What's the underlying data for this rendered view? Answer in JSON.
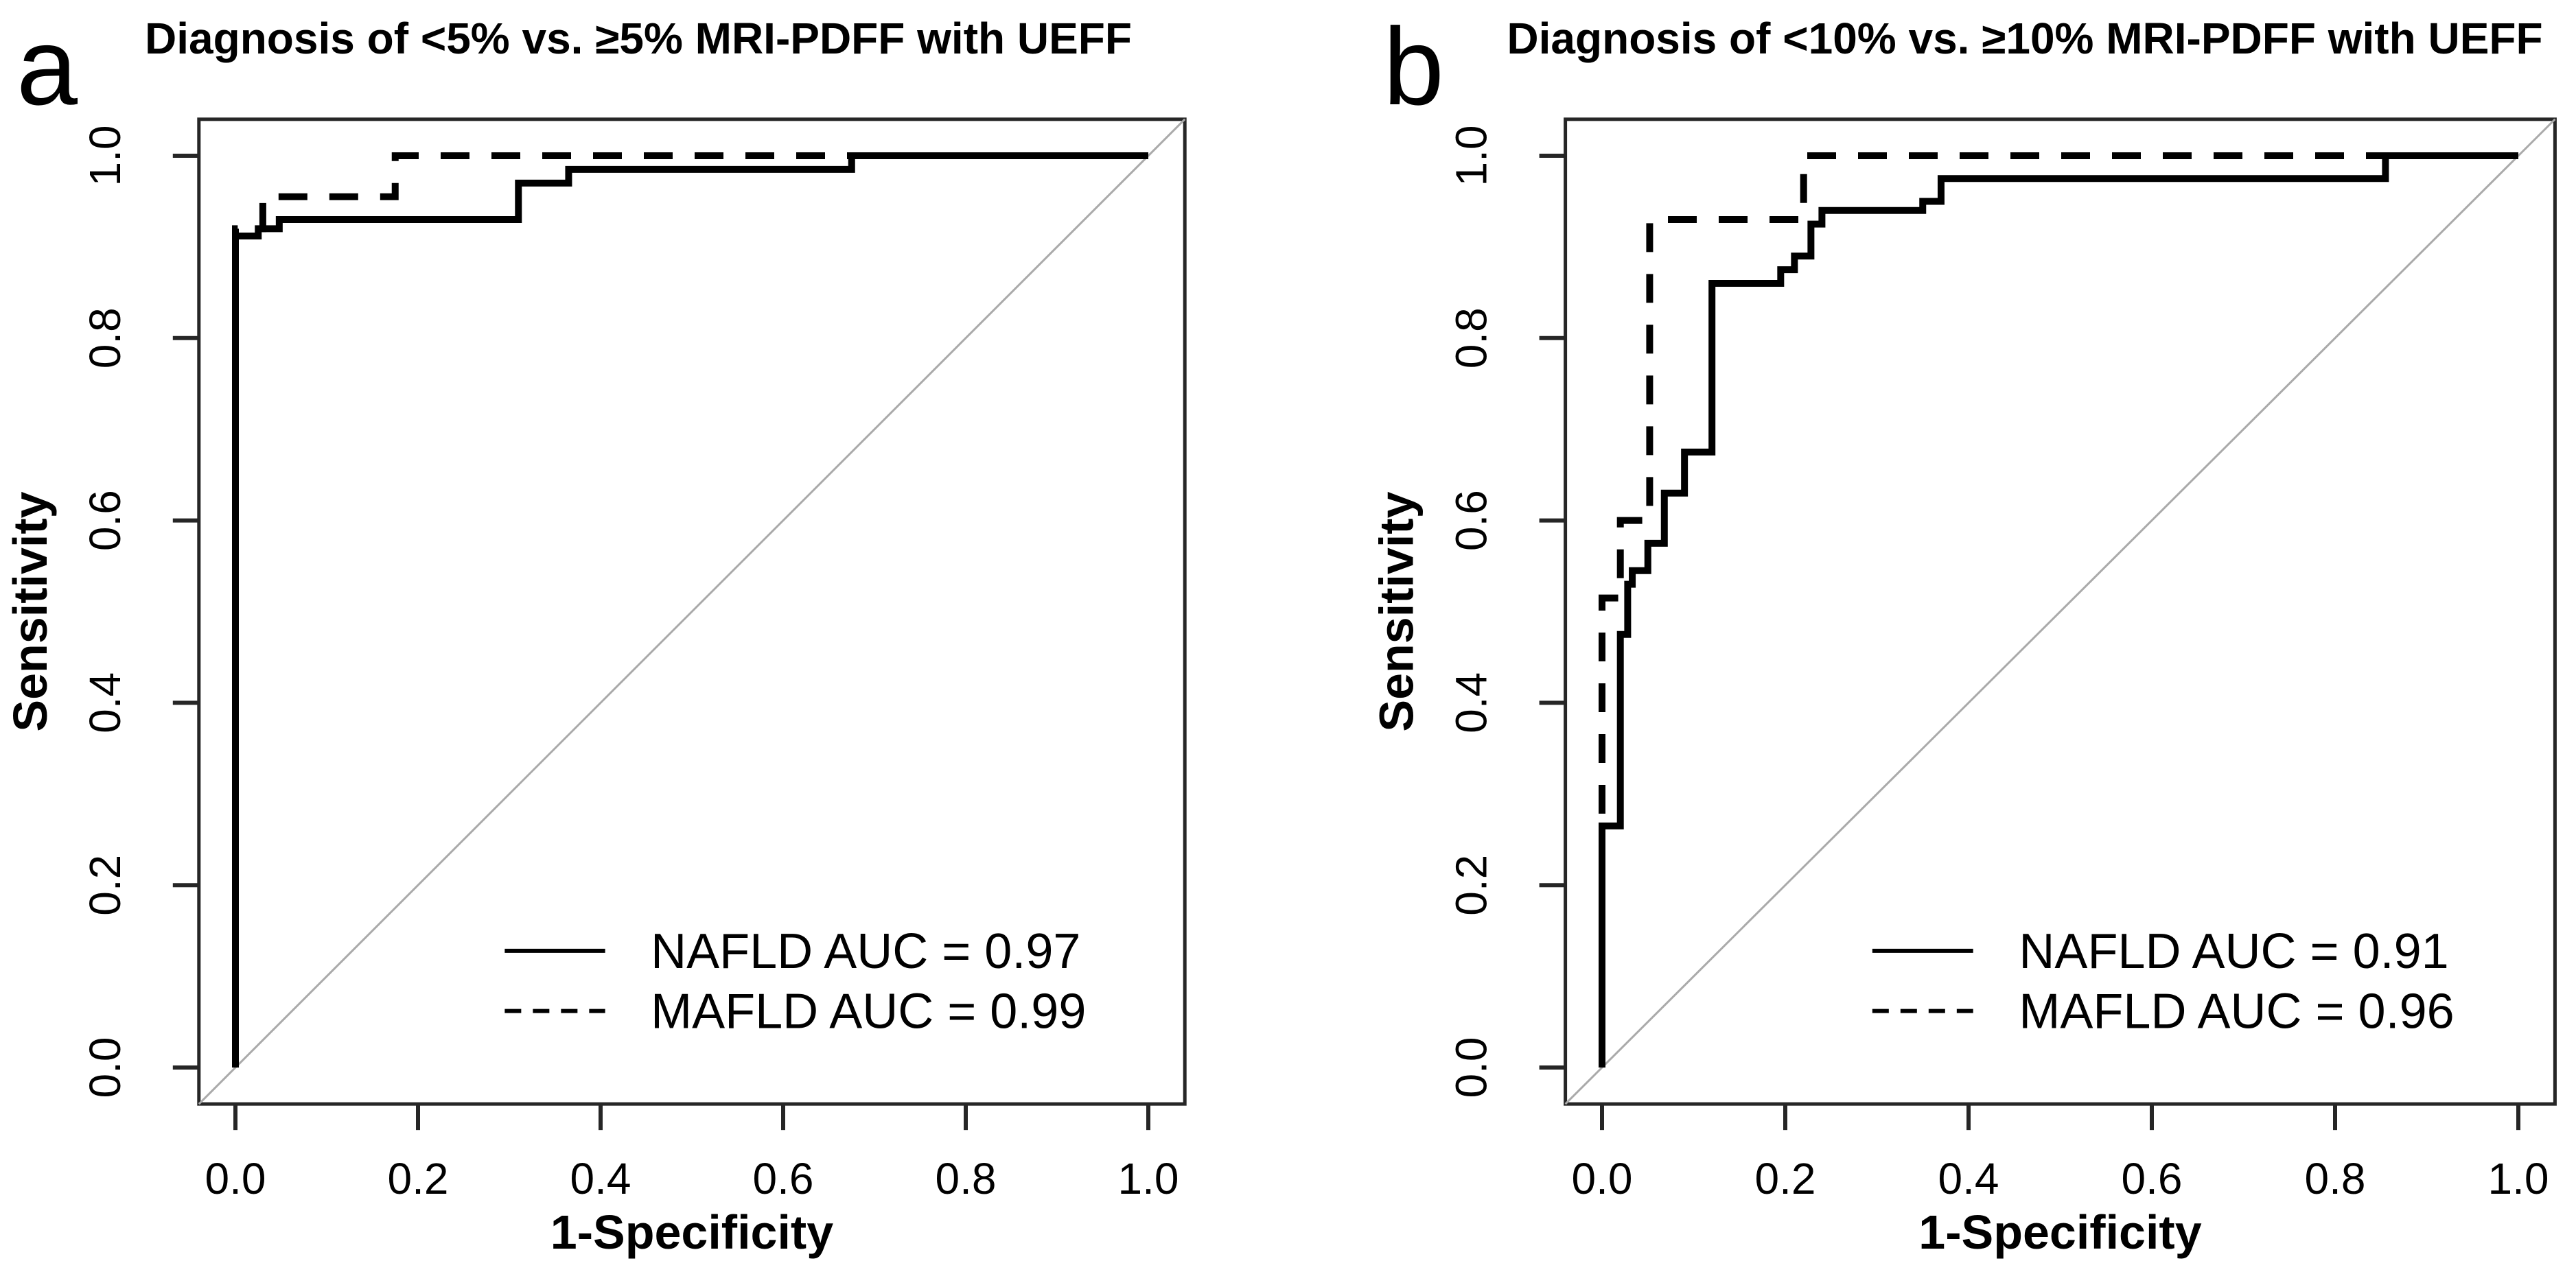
{
  "figure": {
    "background": "#ffffff",
    "description": "Two-panel ROC curve figure comparing UEFF diagnosis of MRI-PDFF thresholds for NAFLD and MAFLD"
  },
  "colors": {
    "curve": "#000000",
    "reference_line": "#aaaaaa",
    "axis_box": "#262626",
    "text": "#000000",
    "background": "#ffffff"
  },
  "chart_data": [
    {
      "type": "line",
      "subtype": "roc-step-curves",
      "panel_label": "a",
      "title": "Diagnosis of <5% vs. ≥5% MRI-PDFF with UEFF",
      "xlabel": "1-Specificity",
      "ylabel": "Sensitivity",
      "xlim": [
        0,
        1
      ],
      "ylim": [
        0,
        1
      ],
      "grid": false,
      "legend_position": "bottom-right",
      "reference_line": "gray diagonal from (0,0) to (1,1)",
      "x_ticks": [
        0.0,
        0.2,
        0.4,
        0.6,
        0.8,
        1.0
      ],
      "y_ticks": [
        0.0,
        0.2,
        0.4,
        0.6,
        0.8,
        1.0
      ],
      "x_tick_labels": [
        "0.0",
        "0.2",
        "0.4",
        "0.6",
        "0.8",
        "1.0"
      ],
      "y_tick_labels": [
        "0.0",
        "0.2",
        "0.4",
        "0.6",
        "0.8",
        "1.0"
      ],
      "series": [
        {
          "name": "NAFLD",
          "auc": 0.97,
          "legend_label": "NAFLD AUC = 0.97",
          "line_style": "solid",
          "color": "#000000",
          "points": [
            [
              0,
              0
            ],
            [
              0,
              0.912
            ],
            [
              0.025,
              0.912
            ],
            [
              0.025,
              0.92
            ],
            [
              0.048,
              0.92
            ],
            [
              0.048,
              0.93
            ],
            [
              0.31,
              0.93
            ],
            [
              0.31,
              0.97
            ],
            [
              0.365,
              0.97
            ],
            [
              0.365,
              0.985
            ],
            [
              0.675,
              0.985
            ],
            [
              0.675,
              1
            ],
            [
              1,
              1
            ]
          ]
        },
        {
          "name": "MAFLD",
          "auc": 0.99,
          "legend_label": "MAFLD AUC = 0.99",
          "line_style": "dashed",
          "color": "#000000",
          "points": [
            [
              0,
              0
            ],
            [
              0,
              0.92
            ],
            [
              0.03,
              0.92
            ],
            [
              0.03,
              0.955
            ],
            [
              0.175,
              0.955
            ],
            [
              0.175,
              1
            ],
            [
              1,
              1
            ]
          ]
        }
      ]
    },
    {
      "type": "line",
      "subtype": "roc-step-curves",
      "panel_label": "b",
      "title": "Diagnosis of <10% vs. ≥10% MRI-PDFF with UEFF",
      "xlabel": "1-Specificity",
      "ylabel": "Sensitivity",
      "xlim": [
        0,
        1
      ],
      "ylim": [
        0,
        1
      ],
      "grid": false,
      "legend_position": "bottom-right",
      "reference_line": "gray diagonal from (0,0) to (1,1)",
      "x_ticks": [
        0.0,
        0.2,
        0.4,
        0.6,
        0.8,
        1.0
      ],
      "y_ticks": [
        0.0,
        0.2,
        0.4,
        0.6,
        0.8,
        1.0
      ],
      "x_tick_labels": [
        "0.0",
        "0.2",
        "0.4",
        "0.6",
        "0.8",
        "1.0"
      ],
      "y_tick_labels": [
        "0.0",
        "0.2",
        "0.4",
        "0.6",
        "0.8",
        "1.0"
      ],
      "series": [
        {
          "name": "NAFLD",
          "auc": 0.91,
          "legend_label": "NAFLD AUC = 0.91",
          "line_style": "solid",
          "color": "#000000",
          "points": [
            [
              0,
              0
            ],
            [
              0,
              0.265
            ],
            [
              0.02,
              0.265
            ],
            [
              0.02,
              0.475
            ],
            [
              0.028,
              0.475
            ],
            [
              0.028,
              0.53
            ],
            [
              0.033,
              0.53
            ],
            [
              0.033,
              0.545
            ],
            [
              0.05,
              0.545
            ],
            [
              0.05,
              0.575
            ],
            [
              0.068,
              0.575
            ],
            [
              0.068,
              0.63
            ],
            [
              0.09,
              0.63
            ],
            [
              0.09,
              0.675
            ],
            [
              0.12,
              0.675
            ],
            [
              0.12,
              0.86
            ],
            [
              0.195,
              0.86
            ],
            [
              0.195,
              0.875
            ],
            [
              0.21,
              0.875
            ],
            [
              0.21,
              0.89
            ],
            [
              0.228,
              0.89
            ],
            [
              0.228,
              0.925
            ],
            [
              0.24,
              0.925
            ],
            [
              0.24,
              0.94
            ],
            [
              0.35,
              0.94
            ],
            [
              0.35,
              0.95
            ],
            [
              0.37,
              0.95
            ],
            [
              0.37,
              0.975
            ],
            [
              0.855,
              0.975
            ],
            [
              0.855,
              1
            ],
            [
              1,
              1
            ]
          ]
        },
        {
          "name": "MAFLD",
          "auc": 0.96,
          "legend_label": "MAFLD AUC = 0.96",
          "line_style": "dashed",
          "color": "#000000",
          "points": [
            [
              0,
              0
            ],
            [
              0,
              0.515
            ],
            [
              0.02,
              0.515
            ],
            [
              0.02,
              0.6
            ],
            [
              0.052,
              0.6
            ],
            [
              0.052,
              0.93
            ],
            [
              0.22,
              0.93
            ],
            [
              0.22,
              1
            ],
            [
              1,
              1
            ]
          ]
        }
      ]
    }
  ]
}
